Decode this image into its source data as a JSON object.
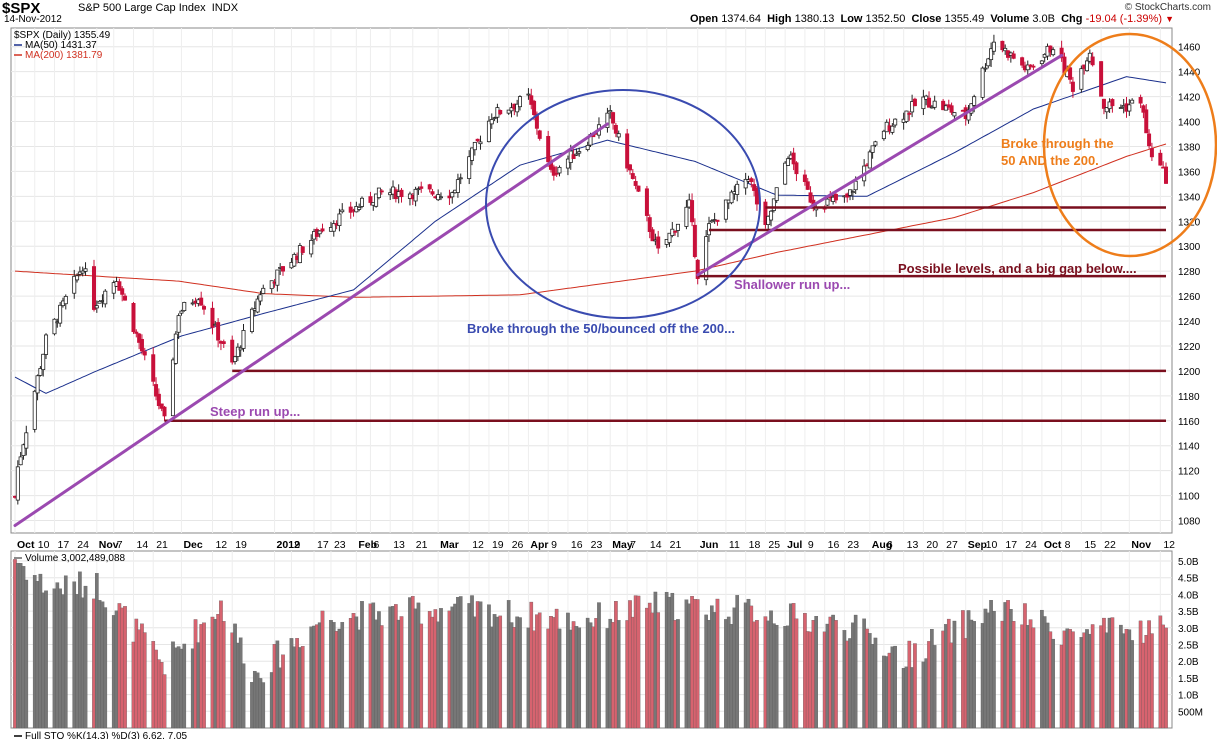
{
  "header": {
    "symbol": "$SPX",
    "name": "S&P 500 Large Cap Index",
    "exchange": "INDX",
    "date": "14-Nov-2012",
    "brand": "© StockCharts.com",
    "open_label": "Open",
    "open": "1374.64",
    "high_label": "High",
    "high": "1380.13",
    "low_label": "Low",
    "low": "1352.50",
    "close_label": "Close",
    "close": "1355.49",
    "volume_label": "Volume",
    "volume": "3.0B",
    "chg_label": "Chg",
    "chg": "-19.04 (-1.39%)"
  },
  "legend": {
    "main": "$SPX (Daily) 1355.49",
    "ma50": "MA(50) 1431.37",
    "ma200": "MA(200) 1381.79",
    "volume": "Volume 3,002,489,088",
    "sto": "Full STO %K(14,3) %D(3) 6.62, 7.05"
  },
  "colors": {
    "up": "#222222",
    "down": "#c8103a",
    "ma50": "#1a2f8c",
    "ma200": "#d03020",
    "trend": "#9b49b0",
    "level": "#7a0f1e",
    "circle_blue": "#3a4bb0",
    "circle_orange": "#ee7d1a",
    "vol_up": "#777777",
    "vol_down": "#d7636f"
  },
  "annotations": {
    "steep": "Steep run up...",
    "broke_50": "Broke through the 50/bounced off the 200...",
    "shallower": "Shallower run up...",
    "possible": "Possible levels,  and a big gap below....",
    "broke_both_1": "Broke through the",
    "broke_both_2": "50 AND the 200."
  },
  "chart_data": [
    {
      "type": "candlestick",
      "title": "$SPX (Daily)",
      "x_labels": [
        "Oct",
        "10",
        "17",
        "24",
        "Nov",
        "7",
        "14",
        "21",
        "Dec",
        "12",
        "19",
        "2012",
        "9",
        "17",
        "23",
        "Feb",
        "6",
        "13",
        "21",
        "Mar",
        "12",
        "19",
        "26",
        "Apr",
        "9",
        "16",
        "23",
        "May",
        "7",
        "14",
        "21",
        "Jun",
        "11",
        "18",
        "25",
        "Jul",
        "9",
        "16",
        "23",
        "Aug",
        "6",
        "13",
        "20",
        "27",
        "Sep",
        "10",
        "17",
        "24",
        "Oct",
        "8",
        "15",
        "22",
        "Nov",
        "12"
      ],
      "y_ticks": [
        1080,
        1100,
        1120,
        1140,
        1160,
        1180,
        1200,
        1220,
        1240,
        1260,
        1280,
        1300,
        1320,
        1340,
        1360,
        1380,
        1400,
        1420,
        1440,
        1460
      ],
      "ylim": [
        1070,
        1475
      ],
      "close_path_anchors": [
        {
          "x": "2011-10-03",
          "y": 1099
        },
        {
          "x": "2011-10-04",
          "y": 1123
        },
        {
          "x": "2011-10-14",
          "y": 1225
        },
        {
          "x": "2011-10-27",
          "y": 1285
        },
        {
          "x": "2011-10-31",
          "y": 1253
        },
        {
          "x": "2011-11-08",
          "y": 1275
        },
        {
          "x": "2011-11-17",
          "y": 1216
        },
        {
          "x": "2011-11-25",
          "y": 1159
        },
        {
          "x": "2011-11-30",
          "y": 1247
        },
        {
          "x": "2011-12-07",
          "y": 1261
        },
        {
          "x": "2011-12-19",
          "y": 1205
        },
        {
          "x": "2011-12-29",
          "y": 1263
        },
        {
          "x": "2012-01-20",
          "y": 1315
        },
        {
          "x": "2012-02-10",
          "y": 1343
        },
        {
          "x": "2012-03-06",
          "y": 1343
        },
        {
          "x": "2012-03-20",
          "y": 1405
        },
        {
          "x": "2012-04-02",
          "y": 1419
        },
        {
          "x": "2012-04-10",
          "y": 1358
        },
        {
          "x": "2012-04-20",
          "y": 1378
        },
        {
          "x": "2012-05-01",
          "y": 1405
        },
        {
          "x": "2012-05-18",
          "y": 1295
        },
        {
          "x": "2012-05-29",
          "y": 1333
        },
        {
          "x": "2012-06-01",
          "y": 1278
        },
        {
          "x": "2012-06-05",
          "y": 1315
        },
        {
          "x": "2012-06-19",
          "y": 1357
        },
        {
          "x": "2012-06-25",
          "y": 1313
        },
        {
          "x": "2012-07-03",
          "y": 1374
        },
        {
          "x": "2012-07-12",
          "y": 1334
        },
        {
          "x": "2012-07-24",
          "y": 1338
        },
        {
          "x": "2012-08-06",
          "y": 1394
        },
        {
          "x": "2012-08-20",
          "y": 1418
        },
        {
          "x": "2012-09-04",
          "y": 1404
        },
        {
          "x": "2012-09-14",
          "y": 1465
        },
        {
          "x": "2012-09-26",
          "y": 1441
        },
        {
          "x": "2012-10-05",
          "y": 1461
        },
        {
          "x": "2012-10-12",
          "y": 1428
        },
        {
          "x": "2012-10-18",
          "y": 1457
        },
        {
          "x": "2012-10-23",
          "y": 1413
        },
        {
          "x": "2012-10-31",
          "y": 1412
        },
        {
          "x": "2012-11-05",
          "y": 1418
        },
        {
          "x": "2012-11-08",
          "y": 1378
        },
        {
          "x": "2012-11-14",
          "y": 1355
        }
      ],
      "ma50_anchors": [
        {
          "x": "2011-10-03",
          "y": 1195
        },
        {
          "x": "2011-10-14",
          "y": 1182
        },
        {
          "x": "2011-11-01",
          "y": 1200
        },
        {
          "x": "2011-12-01",
          "y": 1228
        },
        {
          "x": "2011-12-30",
          "y": 1246
        },
        {
          "x": "2012-01-31",
          "y": 1265
        },
        {
          "x": "2012-02-29",
          "y": 1320
        },
        {
          "x": "2012-03-30",
          "y": 1365
        },
        {
          "x": "2012-04-30",
          "y": 1385
        },
        {
          "x": "2012-05-31",
          "y": 1368
        },
        {
          "x": "2012-06-29",
          "y": 1341
        },
        {
          "x": "2012-07-31",
          "y": 1340
        },
        {
          "x": "2012-08-31",
          "y": 1375
        },
        {
          "x": "2012-09-28",
          "y": 1410
        },
        {
          "x": "2012-10-31",
          "y": 1436
        },
        {
          "x": "2012-11-14",
          "y": 1431
        }
      ],
      "ma200_anchors": [
        {
          "x": "2011-10-03",
          "y": 1280
        },
        {
          "x": "2011-11-30",
          "y": 1272
        },
        {
          "x": "2011-12-30",
          "y": 1262
        },
        {
          "x": "2012-01-31",
          "y": 1259
        },
        {
          "x": "2012-03-30",
          "y": 1261
        },
        {
          "x": "2012-05-31",
          "y": 1280
        },
        {
          "x": "2012-06-29",
          "y": 1295
        },
        {
          "x": "2012-08-31",
          "y": 1323
        },
        {
          "x": "2012-09-28",
          "y": 1343
        },
        {
          "x": "2012-10-31",
          "y": 1372
        },
        {
          "x": "2012-11-14",
          "y": 1382
        }
      ],
      "levels": [
        1160,
        1200,
        1276,
        1313,
        1331
      ],
      "trendlines": [
        {
          "name": "Steep run up...",
          "from": {
            "x": "2011-10-03",
            "y": 1076
          },
          "to": {
            "x": "2012-04-30",
            "y": 1398
          }
        },
        {
          "name": "Shallower run up...",
          "from": {
            "x": "2012-06-01",
            "y": 1277
          },
          "to": {
            "x": "2012-10-08",
            "y": 1453
          }
        }
      ]
    },
    {
      "type": "bar",
      "title": "Volume",
      "y_ticks": [
        "500M",
        "1.0B",
        "1.5B",
        "2.0B",
        "2.5B",
        "3.0B",
        "3.5B",
        "4.0B",
        "4.5B",
        "5.0B"
      ],
      "ylim": [
        0,
        5.3
      ],
      "unit": "billions of shares",
      "value_anchors": [
        {
          "x": "2011-10-03",
          "y": 5.1
        },
        {
          "x": "2011-10-14",
          "y": 4.2
        },
        {
          "x": "2011-11-01",
          "y": 4.3
        },
        {
          "x": "2011-11-25",
          "y": 1.9
        },
        {
          "x": "2011-12-15",
          "y": 3.7
        },
        {
          "x": "2011-12-27",
          "y": 1.6
        },
        {
          "x": "2012-01-20",
          "y": 3.3
        },
        {
          "x": "2012-03-06",
          "y": 3.6
        },
        {
          "x": "2012-04-20",
          "y": 3.2
        },
        {
          "x": "2012-05-18",
          "y": 3.7
        },
        {
          "x": "2012-06-22",
          "y": 3.5
        },
        {
          "x": "2012-07-27",
          "y": 3.0
        },
        {
          "x": "2012-08-13",
          "y": 2.1
        },
        {
          "x": "2012-09-14",
          "y": 3.6
        },
        {
          "x": "2012-10-12",
          "y": 2.8
        },
        {
          "x": "2012-11-14",
          "y": 3.0
        }
      ]
    }
  ]
}
